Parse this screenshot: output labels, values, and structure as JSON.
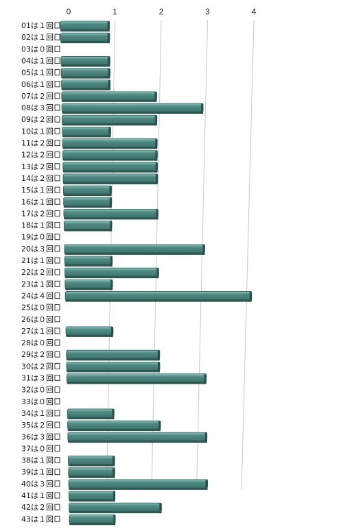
{
  "chart_data": {
    "type": "bar",
    "orientation": "horizontal",
    "style": "3d",
    "bar_color": "#4f8a83",
    "bar_side_color": "#2c5650",
    "xlim": [
      0,
      4
    ],
    "x_ticks": [
      "0",
      "1",
      "2",
      "3",
      "4"
    ],
    "grid": true,
    "categories": [
      "01は１回",
      "02は１回",
      "03は０回",
      "04は１回",
      "05は１回",
      "06は１回",
      "07は２回",
      "08は３回",
      "09は２回",
      "10は１回",
      "11は２回",
      "12は２回",
      "13は２回",
      "14は２回",
      "15は１回",
      "16は１回",
      "17は２回",
      "18は１回",
      "19は０回",
      "20は３回",
      "21は１回",
      "22は２回",
      "23は１回",
      "24は４回",
      "25は０回",
      "26は０回",
      "27は１回",
      "28は０回",
      "29は２回",
      "30は２回",
      "31は３回",
      "32は０回",
      "33は０回",
      "34は１回",
      "35は２回",
      "36は３回",
      "37は０回",
      "38は１回",
      "39は１回",
      "40は３回",
      "41は１回",
      "42は２回",
      "43は１回"
    ],
    "values": [
      1,
      1,
      0,
      1,
      1,
      1,
      2,
      3,
      2,
      1,
      2,
      2,
      2,
      2,
      1,
      1,
      2,
      1,
      0,
      3,
      1,
      2,
      1,
      4,
      0,
      0,
      1,
      0,
      2,
      2,
      3,
      0,
      0,
      1,
      2,
      3,
      0,
      1,
      1,
      3,
      1,
      2,
      1
    ]
  }
}
